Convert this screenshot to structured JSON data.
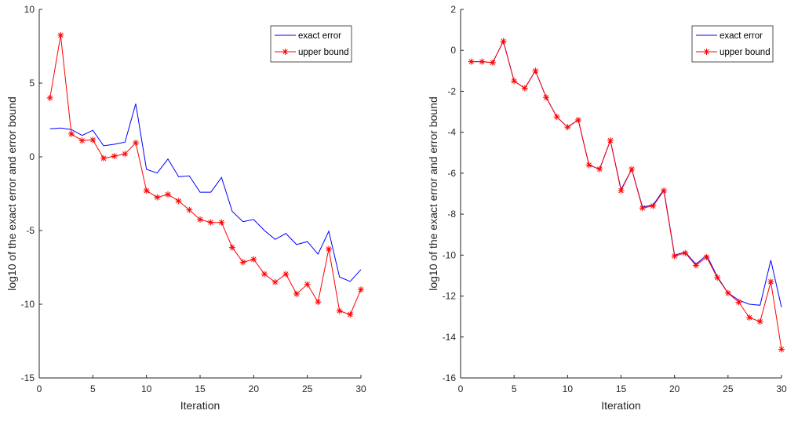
{
  "chart_data": [
    {
      "type": "line",
      "xlabel": "Iteration",
      "ylabel": "log10 of the exact error and error bound",
      "xlim": [
        0,
        30
      ],
      "ylim": [
        -15,
        10
      ],
      "xticks": [
        "0",
        "5",
        "10",
        "15",
        "20",
        "25",
        "30"
      ],
      "yticks": [
        "-15",
        "-10",
        "-5",
        "0",
        "5",
        "10"
      ],
      "legend_position": "top-right",
      "x": [
        1,
        2,
        3,
        4,
        5,
        6,
        7,
        8,
        9,
        10,
        11,
        12,
        13,
        14,
        15,
        16,
        17,
        18,
        19,
        20,
        21,
        22,
        23,
        24,
        25,
        26,
        27,
        28,
        29,
        30
      ],
      "series": [
        {
          "name": "exact error",
          "color": "#0000ff",
          "marker": "none",
          "values": [
            1.9,
            1.95,
            1.85,
            1.45,
            1.8,
            0.75,
            0.85,
            1.0,
            3.6,
            -0.85,
            -1.1,
            -0.15,
            -1.35,
            -1.3,
            -2.4,
            -2.4,
            -1.4,
            -3.7,
            -4.4,
            -4.25,
            -5.0,
            -5.6,
            -5.2,
            -5.95,
            -5.75,
            -6.6,
            -5.05,
            -8.15,
            -8.45,
            -7.65
          ]
        },
        {
          "name": "upper bound",
          "color": "#ff0000",
          "marker": "asterisk",
          "values": [
            4.0,
            8.25,
            1.55,
            1.1,
            1.15,
            -0.1,
            0.05,
            0.2,
            0.95,
            -2.3,
            -2.75,
            -2.55,
            -3.0,
            -3.6,
            -4.25,
            -4.45,
            -4.45,
            -6.15,
            -7.15,
            -6.95,
            -7.95,
            -8.5,
            -7.95,
            -9.3,
            -8.65,
            -9.85,
            -6.25,
            -10.45,
            -10.7,
            -9.0
          ]
        }
      ]
    },
    {
      "type": "line",
      "xlabel": "Iteration",
      "ylabel": "log10 of the exact error and error bound",
      "xlim": [
        0,
        30
      ],
      "ylim": [
        -16,
        2
      ],
      "xticks": [
        "0",
        "5",
        "10",
        "15",
        "20",
        "25",
        "30"
      ],
      "yticks": [
        "-16",
        "-14",
        "-12",
        "-10",
        "-8",
        "-6",
        "-4",
        "-2",
        "0",
        "2"
      ],
      "legend_position": "top-right",
      "x": [
        1,
        2,
        3,
        4,
        5,
        6,
        7,
        8,
        9,
        10,
        11,
        12,
        13,
        14,
        15,
        16,
        17,
        18,
        19,
        20,
        21,
        22,
        23,
        24,
        25,
        26,
        27,
        28,
        29,
        30
      ],
      "series": [
        {
          "name": "exact error",
          "color": "#0000ff",
          "marker": "none",
          "values": [
            -0.55,
            -0.55,
            -0.6,
            0.45,
            -1.5,
            -1.85,
            -1.0,
            -2.3,
            -3.25,
            -3.75,
            -3.4,
            -5.6,
            -5.8,
            -4.4,
            -6.8,
            -5.8,
            -7.65,
            -7.55,
            -6.8,
            -10.0,
            -9.85,
            -10.45,
            -10.0,
            -11.05,
            -11.85,
            -12.2,
            -12.4,
            -12.45,
            -10.25,
            -12.55
          ]
        },
        {
          "name": "upper bound",
          "color": "#ff0000",
          "marker": "asterisk",
          "values": [
            -0.55,
            -0.55,
            -0.6,
            0.45,
            -1.5,
            -1.85,
            -1.0,
            -2.3,
            -3.25,
            -3.75,
            -3.4,
            -5.6,
            -5.8,
            -4.4,
            -6.85,
            -5.8,
            -7.7,
            -7.6,
            -6.85,
            -10.05,
            -9.9,
            -10.5,
            -10.1,
            -11.1,
            -11.85,
            -12.3,
            -13.05,
            -13.25,
            -11.3,
            -14.6
          ]
        }
      ]
    }
  ]
}
